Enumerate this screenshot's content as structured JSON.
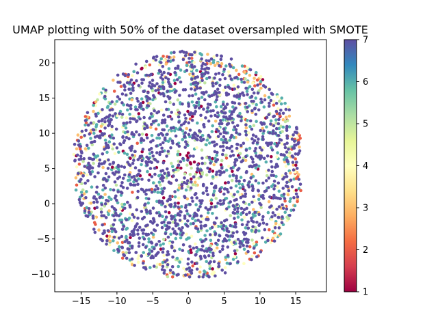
{
  "chart_data": {
    "type": "scatter",
    "title": "UMAP plotting with 50% of the dataset oversampled with SMOTE",
    "xlabel": "",
    "ylabel": "",
    "xlim": [
      -18.7,
      19.3
    ],
    "ylim": [
      -12.5,
      23.3
    ],
    "x_ticks": [
      -15,
      -10,
      -5,
      0,
      5,
      10,
      15
    ],
    "y_ticks": [
      -10,
      -5,
      0,
      5,
      10,
      15,
      20
    ],
    "x_tick_labels": [
      "−15",
      "−10",
      "−5",
      "0",
      "5",
      "10",
      "15"
    ],
    "y_tick_labels": [
      "−10",
      "−5",
      "0",
      "5",
      "10",
      "15",
      "20"
    ],
    "grid": false,
    "colormap": "Spectral",
    "color_value_range": [
      1,
      7
    ],
    "colorbar": {
      "ticks": [
        1,
        2,
        3,
        4,
        5,
        6,
        7
      ],
      "tick_labels": [
        "1",
        "2",
        "3",
        "4",
        "5",
        "6",
        "7"
      ],
      "colors": [
        "#9e0142",
        "#d53e4f",
        "#f46d43",
        "#fdae61",
        "#fee08b",
        "#ffffbf",
        "#e6f598",
        "#abdda4",
        "#66c2a5",
        "#3288bd",
        "#5e4fa2"
      ]
    },
    "point_cloud": {
      "shape": "disc",
      "center": [
        0,
        5.5
      ],
      "radius": 16.2,
      "dominant_class": 7,
      "center_classes": [
        1,
        5
      ],
      "edge_classes": [
        2,
        3,
        4
      ],
      "class_mix": [
        {
          "class": 7,
          "share": 0.6
        },
        {
          "class": 6,
          "share": 0.22
        },
        {
          "class": 5,
          "share": 0.06
        },
        {
          "class": 4,
          "share": 0.05
        },
        {
          "class": 3,
          "share": 0.03
        },
        {
          "class": 2,
          "share": 0.01
        },
        {
          "class": 1,
          "share": 0.03
        }
      ]
    }
  }
}
